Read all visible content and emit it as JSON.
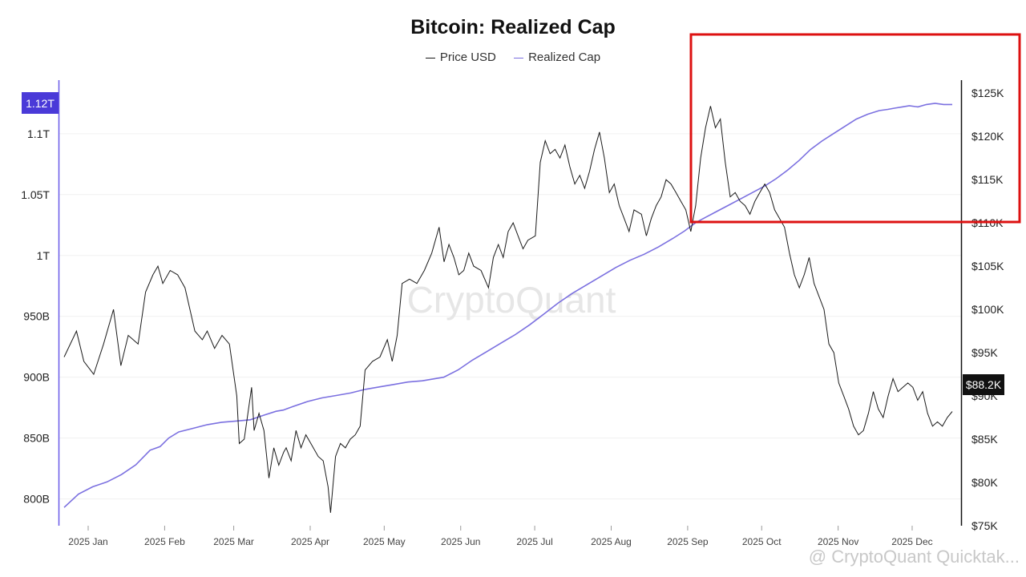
{
  "chart_data": {
    "type": "line",
    "title": "Bitcoin: Realized Cap",
    "x_categories": [
      "2025 Jan",
      "2025 Feb",
      "2025 Mar",
      "2025 Apr",
      "2025 May",
      "2025 Jun",
      "2025 Jul",
      "2025 Aug",
      "2025 Sep",
      "2025 Oct",
      "2025 Nov",
      "2025 Dec"
    ],
    "left_axis": {
      "ticks": [
        "800B",
        "850B",
        "900B",
        "950B",
        "1T",
        "1.05T",
        "1.1T"
      ],
      "range_billions": [
        778,
        1144
      ],
      "current_value_label": "1.12T"
    },
    "right_axis": {
      "ticks": [
        "$75K",
        "$80K",
        "$85K",
        "$90K",
        "$95K",
        "$100K",
        "$105K",
        "$110K",
        "$115K",
        "$120K",
        "$125K"
      ],
      "range_usd_k": [
        75,
        126.5
      ],
      "current_value_label": "$88.2K"
    },
    "series": [
      {
        "name": "Price USD",
        "axis": "right",
        "color": "#1a1a1a",
        "values_k": [
          [
            0,
            94.5
          ],
          [
            5,
            97.5
          ],
          [
            8,
            94.0
          ],
          [
            12,
            92.5
          ],
          [
            16,
            96.0
          ],
          [
            20,
            100.0
          ],
          [
            23,
            93.5
          ],
          [
            26,
            97.0
          ],
          [
            30,
            96.0
          ],
          [
            33,
            102.0
          ],
          [
            36,
            104.0
          ],
          [
            38,
            105.0
          ],
          [
            40,
            103.0
          ],
          [
            43,
            104.5
          ],
          [
            46,
            104.0
          ],
          [
            49,
            102.5
          ],
          [
            53,
            97.5
          ],
          [
            56,
            96.5
          ],
          [
            58,
            97.5
          ],
          [
            61,
            95.5
          ],
          [
            64,
            97.0
          ],
          [
            67,
            96.0
          ],
          [
            70,
            90.0
          ],
          [
            71,
            84.5
          ],
          [
            73,
            85.0
          ],
          [
            76,
            91.0
          ],
          [
            77,
            86.0
          ],
          [
            79,
            88.0
          ],
          [
            81,
            86.0
          ],
          [
            83,
            80.5
          ],
          [
            85,
            84.0
          ],
          [
            87,
            82.0
          ],
          [
            89,
            83.5
          ],
          [
            90,
            84.0
          ],
          [
            92,
            82.5
          ],
          [
            94,
            86.0
          ],
          [
            96,
            84.0
          ],
          [
            98,
            85.5
          ],
          [
            100,
            84.5
          ],
          [
            103,
            83.0
          ],
          [
            105,
            82.5
          ],
          [
            107,
            79.5
          ],
          [
            108,
            76.5
          ],
          [
            110,
            83.0
          ],
          [
            112,
            84.5
          ],
          [
            114,
            84.0
          ],
          [
            116,
            85.0
          ],
          [
            118,
            85.5
          ],
          [
            120,
            86.5
          ],
          [
            122,
            93.0
          ],
          [
            125,
            94.0
          ],
          [
            128,
            94.5
          ],
          [
            131,
            96.5
          ],
          [
            133,
            94.0
          ],
          [
            135,
            97.0
          ],
          [
            137,
            103.0
          ],
          [
            140,
            103.5
          ],
          [
            143,
            103.0
          ],
          [
            146,
            104.5
          ],
          [
            149,
            106.5
          ],
          [
            152,
            109.5
          ],
          [
            154,
            105.5
          ],
          [
            156,
            107.5
          ],
          [
            158,
            106.0
          ],
          [
            160,
            104.0
          ],
          [
            162,
            104.5
          ],
          [
            164,
            106.5
          ],
          [
            166,
            105.0
          ],
          [
            169,
            104.5
          ],
          [
            172,
            102.5
          ],
          [
            174,
            106.0
          ],
          [
            176,
            107.5
          ],
          [
            178,
            106.0
          ],
          [
            180,
            109.0
          ],
          [
            182,
            110.0
          ],
          [
            184,
            108.5
          ],
          [
            186,
            107.0
          ],
          [
            188,
            108.0
          ],
          [
            191,
            108.5
          ],
          [
            193,
            117.0
          ],
          [
            195,
            119.5
          ],
          [
            197,
            118.0
          ],
          [
            199,
            118.5
          ],
          [
            201,
            117.5
          ],
          [
            203,
            119.0
          ],
          [
            205,
            116.5
          ],
          [
            207,
            114.5
          ],
          [
            209,
            115.5
          ],
          [
            211,
            114.0
          ],
          [
            213,
            116.0
          ],
          [
            215,
            118.5
          ],
          [
            217,
            120.5
          ],
          [
            219,
            117.5
          ],
          [
            221,
            113.5
          ],
          [
            223,
            114.5
          ],
          [
            225,
            112.0
          ],
          [
            227,
            110.5
          ],
          [
            229,
            109.0
          ],
          [
            231,
            111.5
          ],
          [
            234,
            111.0
          ],
          [
            236,
            108.5
          ],
          [
            238,
            110.5
          ],
          [
            240,
            112.0
          ],
          [
            242,
            113.0
          ],
          [
            244,
            115.0
          ],
          [
            246,
            114.5
          ],
          [
            248,
            113.5
          ],
          [
            250,
            112.5
          ],
          [
            252,
            111.5
          ],
          [
            254,
            109.0
          ],
          [
            256,
            112.0
          ],
          [
            258,
            117.5
          ],
          [
            260,
            121.0
          ],
          [
            262,
            123.5
          ],
          [
            264,
            121.0
          ],
          [
            266,
            122.0
          ],
          [
            268,
            117.0
          ],
          [
            270,
            113.0
          ],
          [
            272,
            113.5
          ],
          [
            274,
            112.5
          ],
          [
            276,
            112.0
          ],
          [
            278,
            111.0
          ],
          [
            280,
            112.5
          ],
          [
            282,
            113.5
          ],
          [
            284,
            114.5
          ],
          [
            286,
            113.5
          ],
          [
            288,
            111.5
          ],
          [
            290,
            110.5
          ],
          [
            292,
            109.5
          ],
          [
            294,
            106.5
          ],
          [
            296,
            104.0
          ],
          [
            298,
            102.5
          ],
          [
            300,
            104.0
          ],
          [
            302,
            106.0
          ],
          [
            304,
            103.0
          ],
          [
            306,
            101.5
          ],
          [
            308,
            100.0
          ],
          [
            310,
            96.0
          ],
          [
            312,
            95.0
          ],
          [
            314,
            91.5
          ],
          [
            316,
            90.0
          ],
          [
            318,
            88.5
          ],
          [
            320,
            86.5
          ],
          [
            322,
            85.5
          ],
          [
            324,
            86.0
          ],
          [
            326,
            88.0
          ],
          [
            328,
            90.5
          ],
          [
            330,
            88.5
          ],
          [
            332,
            87.5
          ],
          [
            334,
            90.0
          ],
          [
            336,
            92.0
          ],
          [
            338,
            90.5
          ],
          [
            340,
            91.0
          ],
          [
            342,
            91.5
          ],
          [
            344,
            91.0
          ],
          [
            346,
            89.5
          ],
          [
            348,
            90.5
          ],
          [
            350,
            88.0
          ],
          [
            352,
            86.5
          ],
          [
            354,
            87.0
          ],
          [
            356,
            86.5
          ],
          [
            358,
            87.5
          ],
          [
            360,
            88.2
          ]
        ]
      },
      {
        "name": "Realized Cap",
        "axis": "left",
        "color": "#7b70e0",
        "values_billions": [
          [
            0,
            793
          ],
          [
            10,
            804
          ],
          [
            20,
            810
          ],
          [
            30,
            814
          ],
          [
            40,
            820
          ],
          [
            50,
            828
          ],
          [
            55,
            834
          ],
          [
            60,
            840
          ],
          [
            67,
            843
          ],
          [
            73,
            850
          ],
          [
            80,
            855
          ],
          [
            90,
            858
          ],
          [
            100,
            861
          ],
          [
            110,
            863
          ],
          [
            120,
            864
          ],
          [
            130,
            865
          ],
          [
            140,
            869
          ],
          [
            148,
            872
          ],
          [
            153,
            873
          ],
          [
            160,
            876
          ],
          [
            170,
            880
          ],
          [
            180,
            883
          ],
          [
            190,
            885
          ],
          [
            200,
            887
          ],
          [
            210,
            890
          ],
          [
            220,
            892
          ],
          [
            230,
            894
          ],
          [
            240,
            896
          ],
          [
            250,
            897
          ],
          [
            260,
            899
          ],
          [
            265,
            900
          ],
          [
            275,
            906
          ],
          [
            285,
            914
          ],
          [
            295,
            921
          ],
          [
            305,
            928
          ],
          [
            315,
            935
          ],
          [
            325,
            943
          ],
          [
            335,
            952
          ],
          [
            345,
            961
          ],
          [
            355,
            969
          ],
          [
            365,
            976
          ],
          [
            375,
            983
          ],
          [
            385,
            990
          ],
          [
            395,
            996
          ],
          [
            405,
            1001
          ],
          [
            415,
            1007
          ],
          [
            425,
            1014
          ],
          [
            433,
            1020
          ],
          [
            441,
            1027
          ],
          [
            449,
            1032
          ],
          [
            457,
            1037
          ],
          [
            465,
            1042
          ],
          [
            473,
            1047
          ],
          [
            481,
            1052
          ],
          [
            489,
            1057
          ],
          [
            497,
            1063
          ],
          [
            505,
            1070
          ],
          [
            513,
            1078
          ],
          [
            521,
            1087
          ],
          [
            529,
            1094
          ],
          [
            537,
            1100
          ],
          [
            545,
            1106
          ],
          [
            553,
            1112
          ],
          [
            561,
            1116
          ],
          [
            569,
            1119
          ],
          [
            575,
            1120
          ],
          [
            580,
            1121
          ],
          [
            585,
            1122
          ],
          [
            590,
            1123
          ],
          [
            596,
            1122
          ],
          [
            602,
            1124
          ],
          [
            608,
            1125
          ],
          [
            614,
            1124
          ],
          [
            620,
            1124
          ]
        ]
      }
    ],
    "watermark": "CryptoQuant",
    "footer_text": "@ CryptoQuant Quicktak...",
    "annotation": "red rectangle highlighting the Sep–Dec peak region"
  }
}
